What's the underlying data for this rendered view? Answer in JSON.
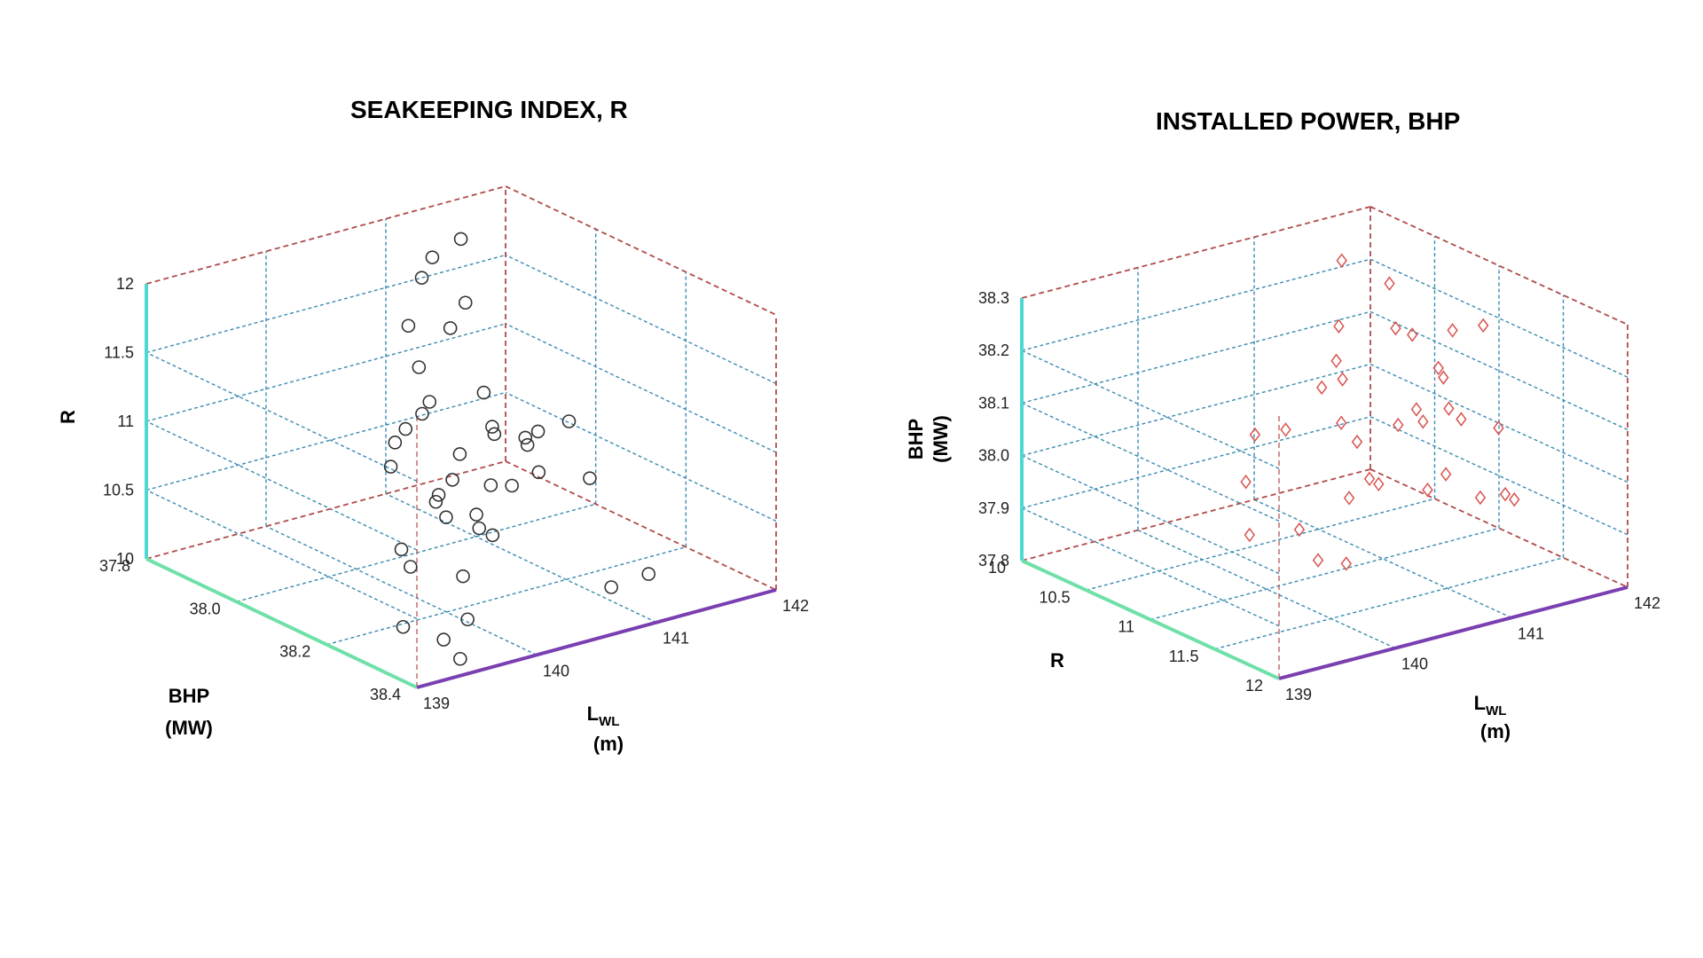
{
  "chart_data": [
    {
      "type": "scatter",
      "title": "SEAKEEPING INDEX, R",
      "axes": {
        "vertical": {
          "label": "R",
          "ticks": [
            "10",
            "10.5",
            "11",
            "11.5",
            "12"
          ],
          "range": [
            10,
            12
          ]
        },
        "depth": {
          "label_line1": "BHP",
          "label_line2": "(MW)",
          "ticks": [
            "37.8",
            "38.0",
            "38.2",
            "38.4"
          ],
          "range": [
            37.8,
            38.4
          ]
        },
        "horizontal": {
          "label": "L",
          "label_sub": "WL",
          "label_line2": "(m)",
          "ticks": [
            "139",
            "140",
            "141",
            "142"
          ],
          "range": [
            139,
            142
          ]
        }
      },
      "marker": "circle",
      "marker_color": "#333333",
      "points": [
        {
          "bhp": 38.35,
          "lwl": 139.55,
          "r": 10.0
        },
        {
          "bhp": 38.3,
          "lwl": 139.6,
          "r": 10.05
        },
        {
          "bhp": 38.25,
          "lwl": 139.45,
          "r": 10.1
        },
        {
          "bhp": 38.3,
          "lwl": 139.8,
          "r": 10.15
        },
        {
          "bhp": 38.2,
          "lwl": 139.7,
          "r": 10.4
        },
        {
          "bhp": 38.25,
          "lwl": 139.95,
          "r": 10.35
        },
        {
          "bhp": 38.1,
          "lwl": 140.0,
          "r": 10.3
        },
        {
          "bhp": 38.05,
          "lwl": 140.1,
          "r": 10.8
        },
        {
          "bhp": 38.2,
          "lwl": 140.05,
          "r": 10.95
        },
        {
          "bhp": 38.15,
          "lwl": 140.1,
          "r": 10.7
        },
        {
          "bhp": 38.35,
          "lwl": 140.2,
          "r": 11.5
        },
        {
          "bhp": 38.3,
          "lwl": 140.3,
          "r": 11.3
        },
        {
          "bhp": 38.2,
          "lwl": 140.4,
          "r": 11.2
        },
        {
          "bhp": 38.15,
          "lwl": 140.5,
          "r": 11.4
        },
        {
          "bhp": 38.0,
          "lwl": 140.55,
          "r": 11.0
        },
        {
          "bhp": 37.95,
          "lwl": 140.6,
          "r": 10.8
        },
        {
          "bhp": 37.9,
          "lwl": 140.7,
          "r": 10.6
        },
        {
          "bhp": 38.05,
          "lwl": 140.5,
          "r": 10.5
        },
        {
          "bhp": 38.1,
          "lwl": 140.65,
          "r": 10.3
        },
        {
          "bhp": 38.0,
          "lwl": 140.75,
          "r": 10.2
        },
        {
          "bhp": 37.95,
          "lwl": 140.8,
          "r": 10.95
        },
        {
          "bhp": 37.9,
          "lwl": 140.9,
          "r": 11.1
        },
        {
          "bhp": 37.85,
          "lwl": 141.0,
          "r": 11.3
        },
        {
          "bhp": 37.95,
          "lwl": 141.1,
          "r": 11.6
        },
        {
          "bhp": 37.85,
          "lwl": 141.2,
          "r": 11.75
        },
        {
          "bhp": 37.9,
          "lwl": 141.25,
          "r": 11.95
        },
        {
          "bhp": 37.8,
          "lwl": 141.3,
          "r": 11.5
        },
        {
          "bhp": 37.85,
          "lwl": 141.35,
          "r": 11.2
        },
        {
          "bhp": 38.0,
          "lwl": 141.3,
          "r": 10.3
        },
        {
          "bhp": 37.9,
          "lwl": 141.5,
          "r": 10.1
        },
        {
          "bhp": 37.95,
          "lwl": 141.6,
          "r": 10.5
        },
        {
          "bhp": 38.1,
          "lwl": 141.4,
          "r": 10.9
        },
        {
          "bhp": 37.85,
          "lwl": 141.7,
          "r": 10.4
        },
        {
          "bhp": 38.3,
          "lwl": 141.0,
          "r": 10.1
        },
        {
          "bhp": 38.25,
          "lwl": 141.5,
          "r": 10.0
        },
        {
          "bhp": 38.0,
          "lwl": 141.95,
          "r": 10.2
        },
        {
          "bhp": 37.9,
          "lwl": 141.9,
          "r": 10.1
        },
        {
          "bhp": 38.15,
          "lwl": 140.3,
          "r": 11.0
        },
        {
          "bhp": 38.2,
          "lwl": 140.25,
          "r": 10.65
        },
        {
          "bhp": 38.05,
          "lwl": 140.95,
          "r": 10.1
        }
      ]
    },
    {
      "type": "scatter",
      "title": "INSTALLED POWER, BHP",
      "axes": {
        "vertical": {
          "label_line1": "BHP",
          "label_line2": "(MW)",
          "ticks": [
            "37.8",
            "37.9",
            "38.0",
            "38.1",
            "38.2",
            "38.3"
          ],
          "range": [
            37.8,
            38.3
          ]
        },
        "depth": {
          "label": "R",
          "ticks": [
            "10",
            "10.5",
            "11",
            "11.5",
            "12"
          ],
          "range": [
            10,
            12
          ]
        },
        "horizontal": {
          "label": "L",
          "label_sub": "WL",
          "label_line2": "(m)",
          "ticks": [
            "139",
            "140",
            "141",
            "142"
          ],
          "range": [
            139,
            142
          ]
        }
      },
      "marker": "diamond",
      "marker_color": "#d9534f",
      "points": [
        {
          "r": 11.5,
          "lwl": 139.3,
          "bhp": 38.0
        },
        {
          "r": 11.6,
          "lwl": 139.5,
          "bhp": 38.2
        },
        {
          "r": 11.2,
          "lwl": 139.6,
          "bhp": 38.05
        },
        {
          "r": 11.7,
          "lwl": 139.7,
          "bhp": 38.28
        },
        {
          "r": 11.0,
          "lwl": 139.9,
          "bhp": 38.1
        },
        {
          "r": 11.3,
          "lwl": 139.95,
          "bhp": 37.95
        },
        {
          "r": 11.5,
          "lwl": 140.1,
          "bhp": 38.25
        },
        {
          "r": 11.8,
          "lwl": 140.0,
          "bhp": 38.1
        },
        {
          "r": 11.4,
          "lwl": 140.2,
          "bhp": 38.15
        },
        {
          "r": 11.6,
          "lwl": 140.3,
          "bhp": 38.05
        },
        {
          "r": 11.2,
          "lwl": 140.4,
          "bhp": 38.3
        },
        {
          "r": 11.9,
          "lwl": 140.35,
          "bhp": 38.2
        },
        {
          "r": 11.0,
          "lwl": 140.6,
          "bhp": 38.2
        },
        {
          "r": 11.5,
          "lwl": 140.7,
          "bhp": 38.3
        },
        {
          "r": 11.3,
          "lwl": 140.8,
          "bhp": 38.1
        },
        {
          "r": 11.7,
          "lwl": 140.9,
          "bhp": 38.15
        },
        {
          "r": 11.1,
          "lwl": 141.0,
          "bhp": 38.25
        },
        {
          "r": 11.4,
          "lwl": 141.1,
          "bhp": 38.0
        },
        {
          "r": 11.6,
          "lwl": 141.2,
          "bhp": 38.3
        },
        {
          "r": 11.2,
          "lwl": 141.3,
          "bhp": 38.15
        },
        {
          "r": 10.9,
          "lwl": 141.4,
          "bhp": 38.05
        },
        {
          "r": 11.5,
          "lwl": 141.5,
          "bhp": 37.95
        },
        {
          "r": 11.0,
          "lwl": 141.6,
          "bhp": 38.2
        },
        {
          "r": 10.8,
          "lwl": 141.7,
          "bhp": 38.1
        },
        {
          "r": 11.3,
          "lwl": 141.8,
          "bhp": 37.9
        },
        {
          "r": 10.7,
          "lwl": 141.9,
          "bhp": 38.0
        },
        {
          "r": 10.9,
          "lwl": 141.95,
          "bhp": 37.85
        },
        {
          "r": 11.8,
          "lwl": 140.5,
          "bhp": 38.05
        },
        {
          "r": 11.9,
          "lwl": 141.0,
          "bhp": 38.15
        },
        {
          "r": 10.6,
          "lwl": 141.5,
          "bhp": 38.25
        },
        {
          "r": 10.5,
          "lwl": 141.2,
          "bhp": 38.3
        },
        {
          "r": 11.4,
          "lwl": 140.0,
          "bhp": 37.9
        },
        {
          "r": 11.8,
          "lwl": 139.8,
          "bhp": 37.95
        },
        {
          "r": 10.8,
          "lwl": 141.0,
          "bhp": 38.0
        },
        {
          "r": 11.1,
          "lwl": 140.6,
          "bhp": 37.95
        }
      ]
    }
  ]
}
